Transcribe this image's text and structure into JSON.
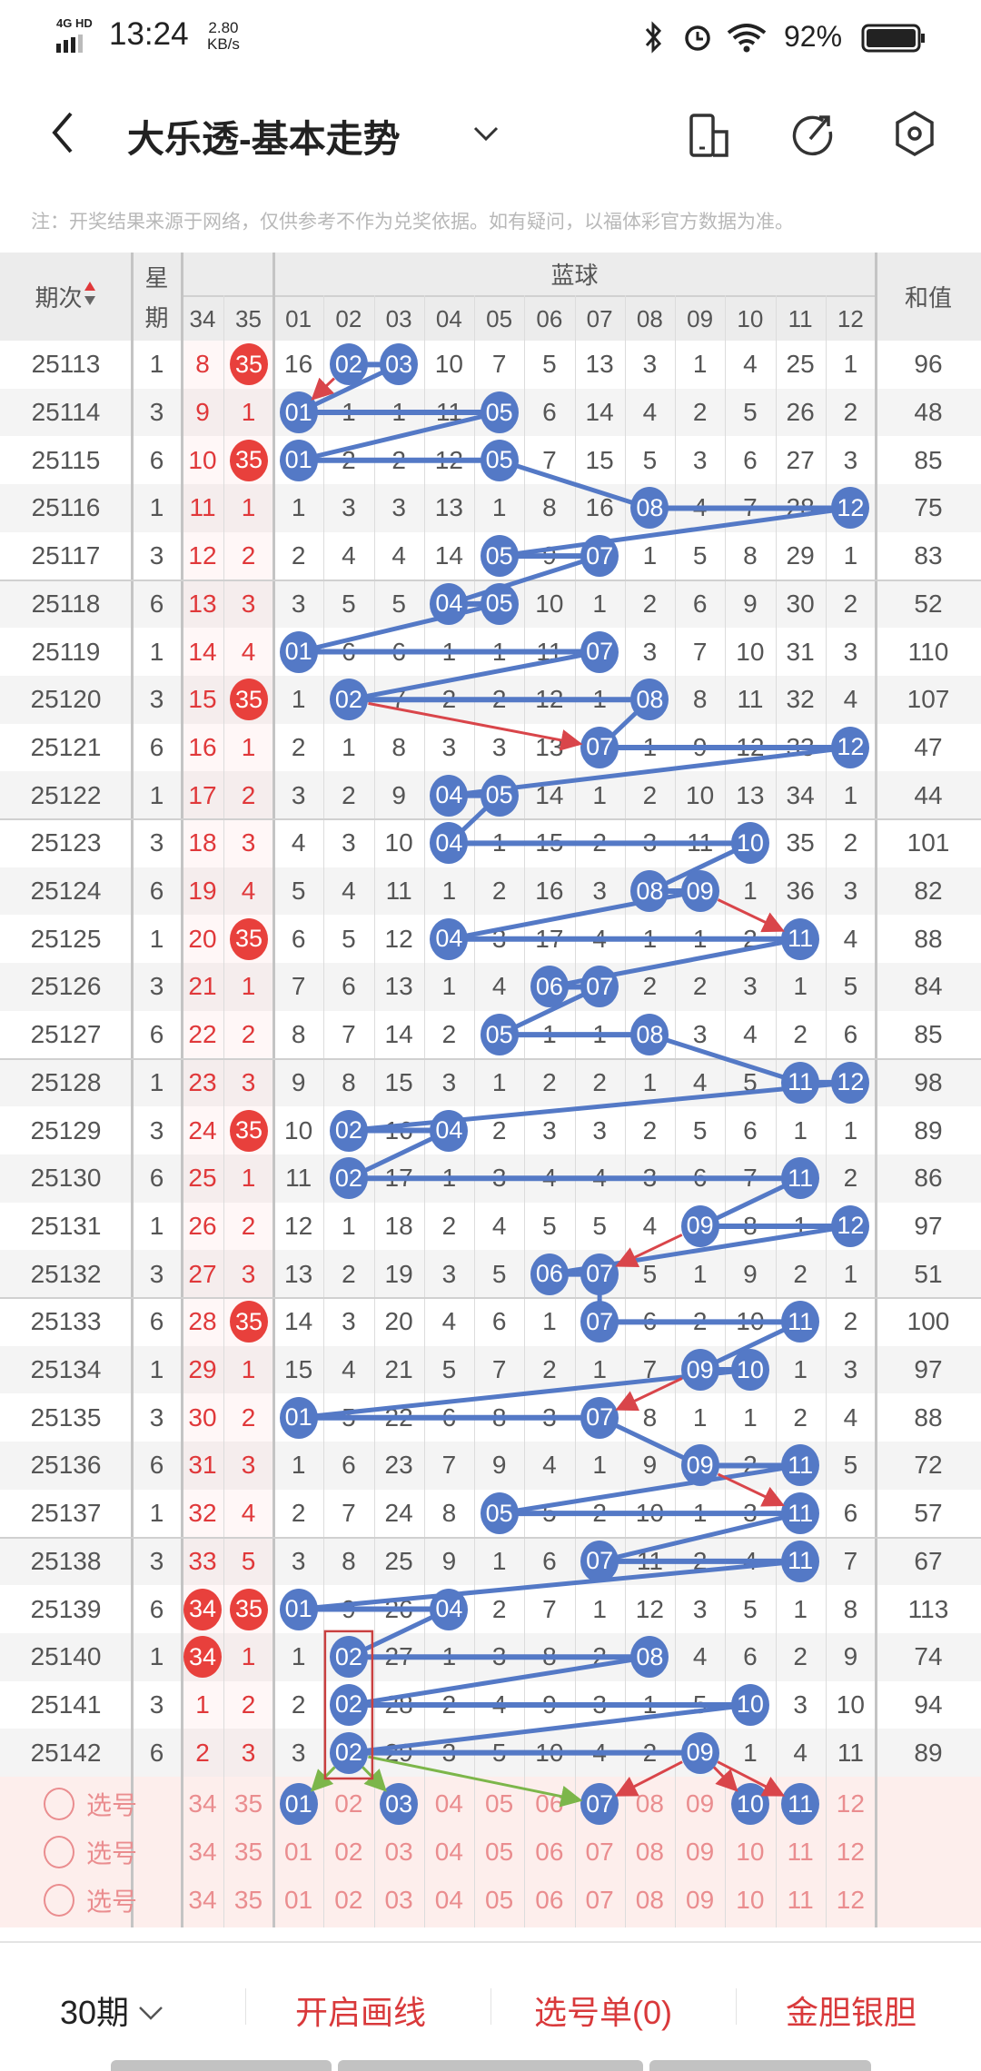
{
  "status_bar": {
    "network": "4G HD",
    "time": "13:24",
    "speed_value": "2.80",
    "speed_unit": "KB/s",
    "battery": "92%"
  },
  "header": {
    "title": "大乐透-基本走势",
    "back_icon": "chevron-left-icon",
    "dropdown_icon": "chevron-down-icon",
    "icons": [
      "rotate-screen-icon",
      "share-icon",
      "settings-icon"
    ]
  },
  "note": "注：开奖结果来源于网络，仅供参考不作为兑奖依据。如有疑问，以福体彩官方数据为准。",
  "table": {
    "col_period": "期次",
    "col_week": [
      "星",
      "期"
    ],
    "group_blue": "蓝球",
    "col_sum": "和值",
    "front_cols": [
      "34",
      "35"
    ],
    "blue_cols": [
      "01",
      "02",
      "03",
      "04",
      "05",
      "06",
      "07",
      "08",
      "09",
      "10",
      "11",
      "12"
    ],
    "colors": {
      "blue_ball": "#5479c6",
      "red_ball": "#e8403c",
      "red_text": "#e0383a"
    },
    "rows": [
      {
        "p": "25113",
        "w": "1",
        "f34": "8",
        "f35": "35",
        "blue": [
          "16",
          "02",
          "03",
          "10",
          "7",
          "5",
          "13",
          "3",
          "1",
          "4",
          "25",
          "1"
        ],
        "sum": "96",
        "hits": [
          2,
          3
        ]
      },
      {
        "p": "25114",
        "w": "3",
        "f34": "9",
        "f35": "1",
        "blue": [
          "01",
          "1",
          "1",
          "11",
          "05",
          "6",
          "14",
          "4",
          "2",
          "5",
          "26",
          "2"
        ],
        "sum": "48",
        "hits": [
          1,
          5
        ]
      },
      {
        "p": "25115",
        "w": "6",
        "f34": "10",
        "f35": "35",
        "blue": [
          "01",
          "2",
          "2",
          "12",
          "05",
          "7",
          "15",
          "5",
          "3",
          "6",
          "27",
          "3"
        ],
        "sum": "85",
        "hits": [
          1,
          5
        ]
      },
      {
        "p": "25116",
        "w": "1",
        "f34": "11",
        "f35": "1",
        "blue": [
          "1",
          "3",
          "3",
          "13",
          "1",
          "8",
          "16",
          "08",
          "4",
          "7",
          "28",
          "12"
        ],
        "sum": "75",
        "hits": [
          8,
          12
        ]
      },
      {
        "p": "25117",
        "w": "3",
        "f34": "12",
        "f35": "2",
        "blue": [
          "2",
          "4",
          "4",
          "14",
          "05",
          "9",
          "07",
          "1",
          "5",
          "8",
          "29",
          "1"
        ],
        "sum": "83",
        "hits": [
          5,
          7
        ]
      },
      {
        "p": "25118",
        "w": "6",
        "f34": "13",
        "f35": "3",
        "blue": [
          "3",
          "5",
          "5",
          "04",
          "05",
          "10",
          "1",
          "2",
          "6",
          "9",
          "30",
          "2"
        ],
        "sum": "52",
        "hits": [
          4,
          5
        ]
      },
      {
        "p": "25119",
        "w": "1",
        "f34": "14",
        "f35": "4",
        "blue": [
          "01",
          "6",
          "6",
          "1",
          "1",
          "11",
          "07",
          "3",
          "7",
          "10",
          "31",
          "3"
        ],
        "sum": "110",
        "hits": [
          1,
          7
        ]
      },
      {
        "p": "25120",
        "w": "3",
        "f34": "15",
        "f35": "35",
        "blue": [
          "1",
          "02",
          "7",
          "2",
          "2",
          "12",
          "1",
          "08",
          "8",
          "11",
          "32",
          "4"
        ],
        "sum": "107",
        "hits": [
          2,
          8
        ]
      },
      {
        "p": "25121",
        "w": "6",
        "f34": "16",
        "f35": "1",
        "blue": [
          "2",
          "1",
          "8",
          "3",
          "3",
          "13",
          "07",
          "1",
          "9",
          "12",
          "33",
          "12"
        ],
        "sum": "47",
        "hits": [
          7,
          12
        ]
      },
      {
        "p": "25122",
        "w": "1",
        "f34": "17",
        "f35": "2",
        "blue": [
          "3",
          "2",
          "9",
          "04",
          "05",
          "14",
          "1",
          "2",
          "10",
          "13",
          "34",
          "1"
        ],
        "sum": "44",
        "hits": [
          4,
          5
        ]
      },
      {
        "p": "25123",
        "w": "3",
        "f34": "18",
        "f35": "3",
        "blue": [
          "4",
          "3",
          "10",
          "04",
          "1",
          "15",
          "2",
          "3",
          "11",
          "10",
          "35",
          "2"
        ],
        "sum": "101",
        "hits": [
          4,
          10
        ]
      },
      {
        "p": "25124",
        "w": "6",
        "f34": "19",
        "f35": "4",
        "blue": [
          "5",
          "4",
          "11",
          "1",
          "2",
          "16",
          "3",
          "08",
          "09",
          "1",
          "36",
          "3"
        ],
        "sum": "82",
        "hits": [
          8,
          9
        ]
      },
      {
        "p": "25125",
        "w": "1",
        "f34": "20",
        "f35": "35",
        "blue": [
          "6",
          "5",
          "12",
          "04",
          "3",
          "17",
          "4",
          "1",
          "1",
          "2",
          "11",
          "4"
        ],
        "sum": "88",
        "hits": [
          4,
          11
        ]
      },
      {
        "p": "25126",
        "w": "3",
        "f34": "21",
        "f35": "1",
        "blue": [
          "7",
          "6",
          "13",
          "1",
          "4",
          "06",
          "07",
          "2",
          "2",
          "3",
          "1",
          "5"
        ],
        "sum": "84",
        "hits": [
          6,
          7
        ]
      },
      {
        "p": "25127",
        "w": "6",
        "f34": "22",
        "f35": "2",
        "blue": [
          "8",
          "7",
          "14",
          "2",
          "05",
          "1",
          "1",
          "08",
          "3",
          "4",
          "2",
          "6"
        ],
        "sum": "85",
        "hits": [
          5,
          8
        ]
      },
      {
        "p": "25128",
        "w": "1",
        "f34": "23",
        "f35": "3",
        "blue": [
          "9",
          "8",
          "15",
          "3",
          "1",
          "2",
          "2",
          "1",
          "4",
          "5",
          "11",
          "12"
        ],
        "sum": "98",
        "hits": [
          11,
          12
        ]
      },
      {
        "p": "25129",
        "w": "3",
        "f34": "24",
        "f35": "35",
        "blue": [
          "10",
          "02",
          "16",
          "04",
          "2",
          "3",
          "3",
          "2",
          "5",
          "6",
          "1",
          "1"
        ],
        "sum": "89",
        "hits": [
          2,
          4
        ]
      },
      {
        "p": "25130",
        "w": "6",
        "f34": "25",
        "f35": "1",
        "blue": [
          "11",
          "02",
          "17",
          "1",
          "3",
          "4",
          "4",
          "3",
          "6",
          "7",
          "11",
          "2"
        ],
        "sum": "86",
        "hits": [
          2,
          11
        ]
      },
      {
        "p": "25131",
        "w": "1",
        "f34": "26",
        "f35": "2",
        "blue": [
          "12",
          "1",
          "18",
          "2",
          "4",
          "5",
          "5",
          "4",
          "09",
          "8",
          "1",
          "12"
        ],
        "sum": "97",
        "hits": [
          9,
          12
        ]
      },
      {
        "p": "25132",
        "w": "3",
        "f34": "27",
        "f35": "3",
        "blue": [
          "13",
          "2",
          "19",
          "3",
          "5",
          "06",
          "07",
          "5",
          "1",
          "9",
          "2",
          "1"
        ],
        "sum": "51",
        "hits": [
          6,
          7
        ]
      },
      {
        "p": "25133",
        "w": "6",
        "f34": "28",
        "f35": "35",
        "blue": [
          "14",
          "3",
          "20",
          "4",
          "6",
          "1",
          "07",
          "6",
          "2",
          "10",
          "11",
          "2"
        ],
        "sum": "100",
        "hits": [
          7,
          11
        ]
      },
      {
        "p": "25134",
        "w": "1",
        "f34": "29",
        "f35": "1",
        "blue": [
          "15",
          "4",
          "21",
          "5",
          "7",
          "2",
          "1",
          "7",
          "09",
          "10",
          "1",
          "3"
        ],
        "sum": "97",
        "hits": [
          9,
          10
        ]
      },
      {
        "p": "25135",
        "w": "3",
        "f34": "30",
        "f35": "2",
        "blue": [
          "01",
          "5",
          "22",
          "6",
          "8",
          "3",
          "07",
          "8",
          "1",
          "1",
          "2",
          "4"
        ],
        "sum": "88",
        "hits": [
          1,
          7
        ]
      },
      {
        "p": "25136",
        "w": "6",
        "f34": "31",
        "f35": "3",
        "blue": [
          "1",
          "6",
          "23",
          "7",
          "9",
          "4",
          "1",
          "9",
          "09",
          "2",
          "11",
          "5"
        ],
        "sum": "72",
        "hits": [
          9,
          11
        ]
      },
      {
        "p": "25137",
        "w": "1",
        "f34": "32",
        "f35": "4",
        "blue": [
          "2",
          "7",
          "24",
          "8",
          "05",
          "5",
          "2",
          "10",
          "1",
          "3",
          "11",
          "6"
        ],
        "sum": "57",
        "hits": [
          5,
          11
        ]
      },
      {
        "p": "25138",
        "w": "3",
        "f34": "33",
        "f35": "5",
        "blue": [
          "3",
          "8",
          "25",
          "9",
          "1",
          "6",
          "07",
          "11",
          "2",
          "4",
          "11",
          "7"
        ],
        "sum": "67",
        "hits": [
          7,
          11
        ]
      },
      {
        "p": "25139",
        "w": "6",
        "f34": "34",
        "f35": "35",
        "blue": [
          "01",
          "9",
          "26",
          "04",
          "2",
          "7",
          "1",
          "12",
          "3",
          "5",
          "1",
          "8"
        ],
        "sum": "113",
        "hits": [
          1,
          4
        ]
      },
      {
        "p": "25140",
        "w": "1",
        "f34": "34",
        "f35": "1",
        "blue": [
          "1",
          "02",
          "27",
          "1",
          "3",
          "8",
          "2",
          "08",
          "4",
          "6",
          "2",
          "9"
        ],
        "sum": "74",
        "hits": [
          2,
          8
        ]
      },
      {
        "p": "25141",
        "w": "3",
        "f34": "1",
        "f35": "2",
        "blue": [
          "2",
          "02",
          "28",
          "2",
          "4",
          "9",
          "3",
          "1",
          "5",
          "10",
          "3",
          "10"
        ],
        "sum": "94",
        "hits": [
          2,
          10
        ]
      },
      {
        "p": "25142",
        "w": "6",
        "f34": "2",
        "f35": "3",
        "blue": [
          "3",
          "02",
          "29",
          "3",
          "5",
          "10",
          "4",
          "2",
          "09",
          "1",
          "4",
          "11"
        ],
        "sum": "89",
        "hits": [
          2,
          9
        ]
      }
    ],
    "front_hit_34": "34",
    "front_hit_35": "35"
  },
  "select_rows": [
    {
      "label": "选号",
      "selected": [
        1,
        3,
        7,
        10,
        11
      ]
    },
    {
      "label": "选号",
      "selected": []
    },
    {
      "label": "选号",
      "selected": []
    }
  ],
  "annotations": {
    "red_color": "#d9454a",
    "green_color": "#7cb64a",
    "arrows": [
      {
        "from": [
          0,
          2
        ],
        "to": [
          1,
          1
        ],
        "color": "red"
      },
      {
        "from": [
          7,
          2
        ],
        "to": [
          8,
          7
        ],
        "color": "red"
      },
      {
        "from": [
          11,
          9
        ],
        "to": [
          12,
          11
        ],
        "color": "red"
      },
      {
        "from": [
          18,
          9
        ],
        "to": [
          19,
          7
        ],
        "color": "red"
      },
      {
        "from": [
          21,
          9
        ],
        "to": [
          22,
          7
        ],
        "color": "red"
      },
      {
        "from": [
          23,
          9
        ],
        "to": [
          24,
          11
        ],
        "color": "red"
      },
      {
        "from": [
          29,
          2
        ],
        "to": [
          "sel",
          1
        ],
        "color": "green"
      },
      {
        "from": [
          29,
          2
        ],
        "to": [
          "sel",
          3
        ],
        "color": "green"
      },
      {
        "from": [
          29,
          2
        ],
        "to": [
          "sel",
          7
        ],
        "color": "green"
      },
      {
        "from": [
          29,
          9
        ],
        "to": [
          "sel",
          7
        ],
        "color": "red"
      },
      {
        "from": [
          29,
          9
        ],
        "to": [
          "sel",
          10
        ],
        "color": "red"
      },
      {
        "from": [
          29,
          9
        ],
        "to": [
          "sel",
          11
        ],
        "color": "red"
      }
    ],
    "highlight_box": {
      "column": 2,
      "from_row": 27,
      "to_row": 29
    }
  },
  "bottom_bar": {
    "periods": "30期",
    "draw_lines": "开启画线",
    "pick_list": "选号单(0)",
    "gold_silver": "金胆银胆"
  }
}
